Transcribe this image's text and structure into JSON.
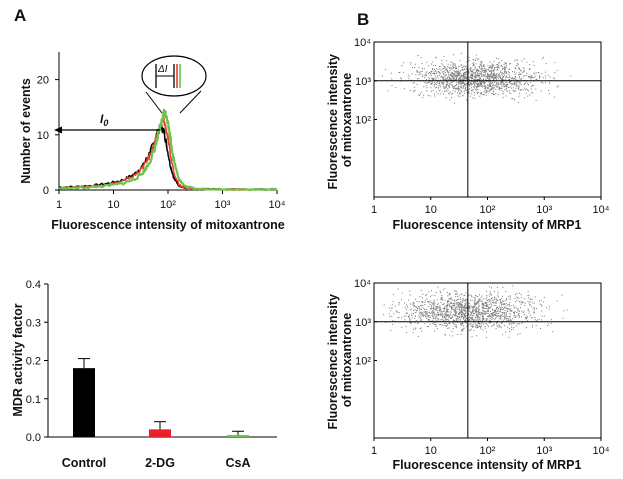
{
  "panel_letters": [
    "A",
    "B"
  ],
  "chart_data": [
    {
      "id": "histogram",
      "type": "line",
      "xlabel": "Fluorescence intensity of mitoxantrone",
      "ylabel": "Number of events",
      "x_scale": "log",
      "xlim": [
        1,
        10000
      ],
      "ylim": [
        0,
        25
      ],
      "x_ticks": [
        "1",
        "10",
        "10²",
        "10³",
        "10⁴"
      ],
      "y_ticks": [
        "0",
        "10",
        "20"
      ],
      "annotations": {
        "baseline_label": "I",
        "baseline_subscript": "0",
        "delta_label": "ΔI"
      },
      "colors": [
        "#000000",
        "#e8402a",
        "#6cc24a"
      ],
      "series": [
        {
          "color": "#000000",
          "x": [
            1,
            2,
            4,
            8,
            15,
            25,
            35,
            45,
            55,
            65,
            75,
            85,
            95,
            110,
            130,
            160,
            200,
            300,
            1000,
            10000
          ],
          "y": [
            0.5,
            0.6,
            0.8,
            1.2,
            1.8,
            3.0,
            4.5,
            6.5,
            8.5,
            10.5,
            11.5,
            10.5,
            8.0,
            4.5,
            2.0,
            0.8,
            0.4,
            0.2,
            0.1,
            0.1
          ]
        },
        {
          "color": "#e8402a",
          "x": [
            1,
            2,
            4,
            8,
            15,
            25,
            35,
            45,
            55,
            65,
            75,
            85,
            95,
            110,
            130,
            160,
            200,
            300,
            1000,
            10000
          ],
          "y": [
            0.4,
            0.5,
            0.7,
            1.0,
            1.6,
            2.7,
            4.2,
            6.0,
            8.0,
            10.2,
            12.0,
            12.5,
            10.5,
            6.5,
            3.0,
            1.0,
            0.4,
            0.2,
            0.1,
            0.1
          ]
        },
        {
          "color": "#6cc24a",
          "x": [
            1,
            2,
            4,
            8,
            15,
            25,
            35,
            45,
            55,
            65,
            75,
            85,
            95,
            110,
            130,
            160,
            200,
            300,
            1000,
            10000
          ],
          "y": [
            0.3,
            0.4,
            0.5,
            0.8,
            1.2,
            2.0,
            3.2,
            4.8,
            7.0,
            9.5,
            12.0,
            14.2,
            13.5,
            9.5,
            5.0,
            2.0,
            0.7,
            0.3,
            0.1,
            0.1
          ]
        }
      ]
    },
    {
      "id": "scatter-top",
      "type": "scatter",
      "xlabel": "Fluorescence intensity of MRP1",
      "ylabel_lines": [
        "Fluorescence intensity",
        "of mitoxantrone"
      ],
      "x_scale": "log",
      "y_scale": "log",
      "xlim": [
        1,
        10000
      ],
      "ylim": [
        1,
        10000
      ],
      "x_ticks": [
        "1",
        "10",
        "10²",
        "10³",
        "10⁴"
      ],
      "y_ticks": [
        "10²",
        "10³",
        "10⁴"
      ],
      "quadrant_x": 45,
      "quadrant_y": 1000,
      "cloud": {
        "center_x": 60,
        "center_y": 1200,
        "spread_x_decades": 0.55,
        "spread_y_decades": 0.22,
        "count": 1400
      }
    },
    {
      "id": "bar",
      "type": "bar",
      "ylabel": "MDR activity factor",
      "categories": [
        "Control",
        "2-DG",
        "CsA"
      ],
      "values": [
        0.18,
        0.02,
        0.005
      ],
      "errors": [
        0.025,
        0.02,
        0.01
      ],
      "colors": [
        "#000000",
        "#e8202a",
        "#6cc24a"
      ],
      "ylim": [
        0,
        0.4
      ],
      "y_ticks": [
        "0.0",
        "0.1",
        "0.2",
        "0.3",
        "0.4"
      ]
    },
    {
      "id": "scatter-bottom",
      "type": "scatter",
      "xlabel": "Fluorescence intensity of MRP1",
      "ylabel_lines": [
        "Fluorescence intensity",
        "of mitoxantrone"
      ],
      "x_scale": "log",
      "y_scale": "log",
      "xlim": [
        1,
        10000
      ],
      "ylim": [
        1,
        10000
      ],
      "x_ticks": [
        "1",
        "10",
        "10²",
        "10³",
        "10⁴"
      ],
      "y_ticks": [
        "10²",
        "10³",
        "10⁴"
      ],
      "quadrant_x": 45,
      "quadrant_y": 1000,
      "cloud": {
        "center_x": 45,
        "center_y": 1800,
        "spread_x_decades": 0.6,
        "spread_y_decades": 0.25,
        "count": 1400
      }
    }
  ]
}
